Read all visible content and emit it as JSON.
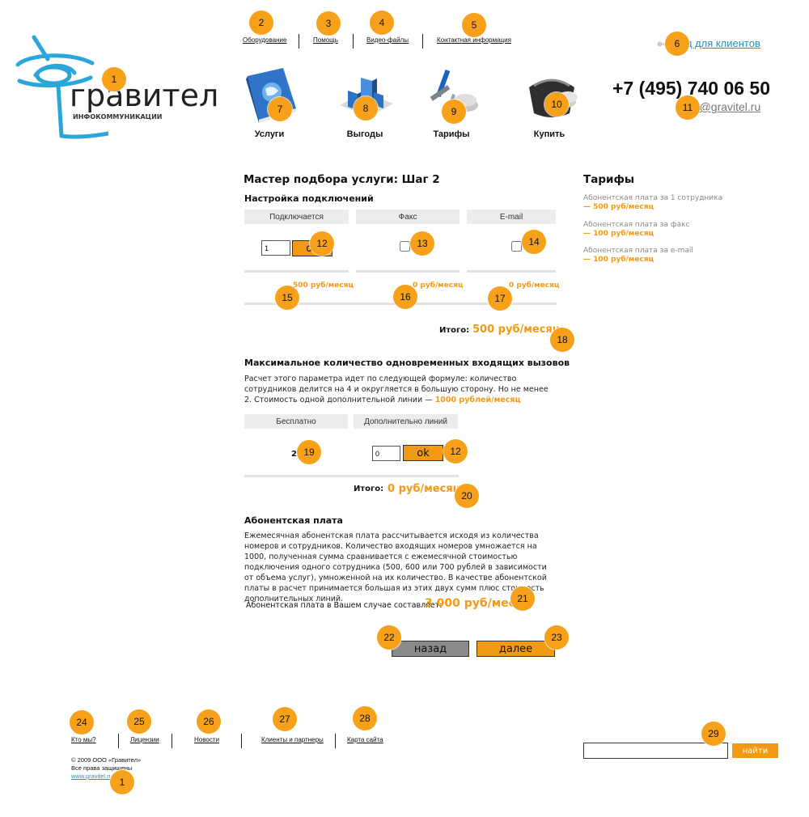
{
  "logo": {
    "brand_name": "гравител",
    "tagline": "ИНФОКОММУНИКАЦИИ"
  },
  "top_nav": [
    {
      "label": "Оборудование"
    },
    {
      "label": "Помощь"
    },
    {
      "label": "Видео-файлы"
    },
    {
      "label": "Контактная информация"
    }
  ],
  "client_login": {
    "label": "Вход для клиентов"
  },
  "contacts": {
    "phone": "+7 (495) 740 06 50",
    "email": "info@gravitel.ru"
  },
  "main_icons": [
    {
      "label": "Услуги",
      "icon": "services-book-icon"
    },
    {
      "label": "Выгоды",
      "icon": "benefits-chart-icon"
    },
    {
      "label": "Тарифы",
      "icon": "tariffs-tools-icon"
    },
    {
      "label": "Купить",
      "icon": "buy-purse-icon"
    }
  ],
  "wizard": {
    "title": "Мастер подбора услуги: Шаг 2",
    "connections": {
      "title": "Настройка подключений",
      "columns": [
        {
          "header": "Подключается",
          "price": "500 руб/месяц"
        },
        {
          "header": "Факс",
          "price": "0 руб/месяц"
        },
        {
          "header": "E-mail",
          "price": "0 руб/месяц"
        }
      ],
      "employees_value": "1",
      "ok_label": "ok",
      "total_label": "Итого:",
      "total_value": "500 руб/месяц"
    },
    "max_calls": {
      "title": "Максимальное количество одновременных входящих вызовов",
      "description": "Расчет этого параметра идет по следующей формуле: количество сотрудников делится на 4 и округляется в большую сторону. Но не менее 2. Стоимость одной дополнительной линии —",
      "line_price": "1000 рублей/месяц",
      "columns": [
        {
          "header": "Бесплатно"
        },
        {
          "header": "Дополнительно линий"
        }
      ],
      "free_value": "2",
      "extra_value": "0",
      "ok_label": "ok",
      "total_label": "Итого:",
      "total_value": "0 руб/месяц"
    },
    "subscription": {
      "title": "Абонентская плата",
      "description": "Ежемесячная абонентская плата рассчитывается исходя из  количества номеров и сотрудников.  Количество входящих номеров умножается на 1000, полученная сумма сравнивается с ежемесячной  стоимостью подключения одного сотрудника (500, 600 или 700 рублей в зависимости от объема услуг), умноженной на их количество.  В качестве абонентской платы в расчет принимается большая из этих двух сумм плюс стоимость дополнительных линий.",
      "result_label": "Абонентская плата в Вашем случае  составляет:",
      "result_value": "3 000 руб/месяц"
    },
    "back_label": "назад",
    "next_label": "далее"
  },
  "sidebar": {
    "title": "Тарифы",
    "items": [
      {
        "label": "Абонентская плата за 1 сотрудника",
        "price": "— 500 руб/месяц"
      },
      {
        "label": "Абонентская плата за факс",
        "price": "— 100 руб/месяц"
      },
      {
        "label": "Абонентская плата за e-mail",
        "price": "— 100 руб/месяц"
      }
    ]
  },
  "footer": {
    "links": [
      {
        "label": "Кто мы?"
      },
      {
        "label": "Лицензии"
      },
      {
        "label": "Новости"
      },
      {
        "label": "Клиенты и партнеры"
      },
      {
        "label": "Карта сайта"
      }
    ],
    "copyright": "© 2009 ООО «Гравител»",
    "rights": "Все права защищены",
    "site": "www.gravitel.ru",
    "search_button": "найти"
  },
  "annotations": [
    "1",
    "2",
    "3",
    "4",
    "5",
    "6",
    "7",
    "8",
    "9",
    "10",
    "11",
    "12",
    "13",
    "14",
    "15",
    "16",
    "17",
    "18",
    "19",
    "12",
    "20",
    "21",
    "22",
    "23",
    "24",
    "25",
    "26",
    "27",
    "28",
    "29",
    "1"
  ],
  "colors": {
    "accent": "#f39a14",
    "marker": "#f7a11a",
    "link_blue": "#2a8fc4",
    "gray_button": "#8a8a8a"
  }
}
